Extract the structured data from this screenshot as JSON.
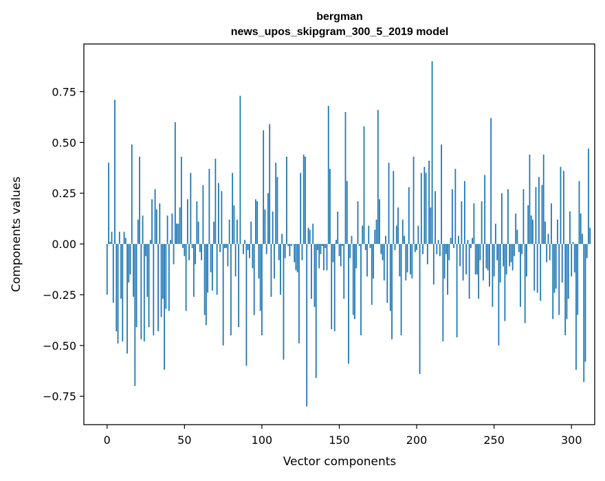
{
  "chart_data": {
    "type": "bar",
    "title_line1": "bergman",
    "title_line2": "news_upos_skipgram_300_5_2019 model",
    "xlabel": "Vector components",
    "ylabel": "Components values",
    "xlim": [
      -15,
      315
    ],
    "ylim": [
      -0.89,
      0.985
    ],
    "xticks": [
      0,
      50,
      100,
      150,
      200,
      250,
      300
    ],
    "yticks": [
      -0.75,
      -0.5,
      -0.25,
      0.0,
      0.25,
      0.5,
      0.75
    ],
    "ytick_labels": [
      "−0.75",
      "−0.50",
      "−0.25",
      "0.00",
      "0.25",
      "0.50",
      "0.75"
    ],
    "bar_color": "#1f77b4",
    "values": [
      -0.25,
      0.4,
      0.01,
      0.06,
      -0.29,
      0.71,
      -0.43,
      -0.49,
      0.06,
      -0.27,
      -0.48,
      0.06,
      0.03,
      -0.54,
      -0.19,
      -0.15,
      0.49,
      -0.26,
      -0.7,
      -0.41,
      0.12,
      0.43,
      -0.47,
      0.14,
      -0.48,
      -0.06,
      -0.26,
      -0.41,
      0.02,
      0.22,
      -0.45,
      0.27,
      0.17,
      -0.43,
      0.2,
      -0.36,
      -0.27,
      -0.62,
      -0.32,
      0.14,
      -0.33,
      0.02,
      0.15,
      -0.1,
      0.6,
      0.1,
      0.1,
      0.18,
      0.43,
      -0.02,
      -0.06,
      -0.33,
      0.22,
      -0.08,
      0.35,
      -0.02,
      -0.26,
      -0.1,
      0.21,
      0.11,
      -0.04,
      -0.08,
      0.29,
      -0.35,
      -0.4,
      -0.24,
      0.37,
      -0.14,
      -0.23,
      0.11,
      0.42,
      -0.25,
      0.3,
      -0.04,
      0.26,
      -0.5,
      -0.02,
      -0.02,
      -0.11,
      0.12,
      -0.45,
      0.35,
      0.19,
      -0.16,
      0.12,
      -0.41,
      0.73,
      0.0,
      -0.05,
      0.02,
      -0.6,
      -0.03,
      -0.07,
      0.11,
      -0.12,
      -0.35,
      0.22,
      0.21,
      -0.17,
      -0.33,
      -0.45,
      0.56,
      0.17,
      -0.05,
      0.25,
      0.59,
      -0.26,
      0.16,
      -0.17,
      0.4,
      0.33,
      -0.08,
      -0.25,
      0.05,
      -0.57,
      -0.07,
      0.43,
      -0.01,
      -0.06,
      -0.01,
      0.0,
      -0.09,
      -0.13,
      -0.14,
      -0.49,
      0.35,
      -0.08,
      0.44,
      0.43,
      -0.8,
      0.08,
      0.07,
      -0.27,
      0.1,
      -0.31,
      -0.66,
      -0.03,
      -0.12,
      -0.05,
      -0.01,
      -0.13,
      -0.02,
      -0.13,
      0.68,
      0.37,
      -0.42,
      -0.09,
      -0.43,
      0.02,
      0.16,
      -0.06,
      -0.11,
      -0.01,
      -0.27,
      0.65,
      0.31,
      -0.59,
      -0.07,
      0.04,
      -0.35,
      -0.37,
      -0.12,
      0.21,
      -0.01,
      -0.45,
      0.09,
      0.58,
      -0.03,
      -0.16,
      0.09,
      -0.02,
      -0.3,
      -0.17,
      0.07,
      0.12,
      0.66,
      0.22,
      -0.05,
      -0.08,
      -0.18,
      0.04,
      -0.29,
      0.4,
      -0.33,
      -0.47,
      0.36,
      -0.03,
      0.09,
      0.18,
      -0.16,
      -0.45,
      0.12,
      0.04,
      -0.18,
      -0.14,
      0.28,
      -0.15,
      -0.17,
      0.43,
      -0.04,
      -0.03,
      0.09,
      -0.64,
      0.35,
      -0.05,
      0.38,
      0.35,
      -0.1,
      0.41,
      0.18,
      0.9,
      -0.2,
      0.26,
      -0.05,
      0.02,
      -0.06,
      0.49,
      -0.48,
      -0.17,
      -0.05,
      -0.25,
      -0.08,
      0.03,
      0.27,
      -0.02,
      0.37,
      -0.46,
      0.04,
      -0.11,
      0.21,
      -0.18,
      0.31,
      -0.15,
      0.02,
      -0.27,
      -0.02,
      0.03,
      0.2,
      -0.15,
      -0.15,
      -0.27,
      -0.08,
      0.21,
      -0.18,
      0.34,
      -0.12,
      -0.13,
      -0.21,
      0.62,
      -0.31,
      -0.16,
      0.1,
      -0.08,
      -0.5,
      -0.19,
      0.25,
      -0.11,
      -0.38,
      -0.15,
      0.27,
      -0.11,
      -0.09,
      -0.13,
      -0.06,
      0.15,
      0.07,
      -0.04,
      -0.31,
      -0.05,
      0.27,
      -0.39,
      -0.16,
      0.19,
      0.44,
      0.14,
      0.12,
      -0.23,
      0.28,
      -0.24,
      0.33,
      -0.28,
      0.29,
      0.44,
      0.11,
      -0.09,
      0.05,
      -0.08,
      0.2,
      -0.37,
      -0.24,
      -0.22,
      0.12,
      -0.35,
      0.38,
      -0.19,
      0.36,
      -0.45,
      -0.37,
      -0.27,
      0.16,
      -0.16,
      0.01,
      -0.14,
      -0.62,
      -0.35,
      0.31,
      0.15,
      0.05,
      -0.68,
      -0.58,
      -0.07,
      0.47,
      0.08
    ]
  }
}
